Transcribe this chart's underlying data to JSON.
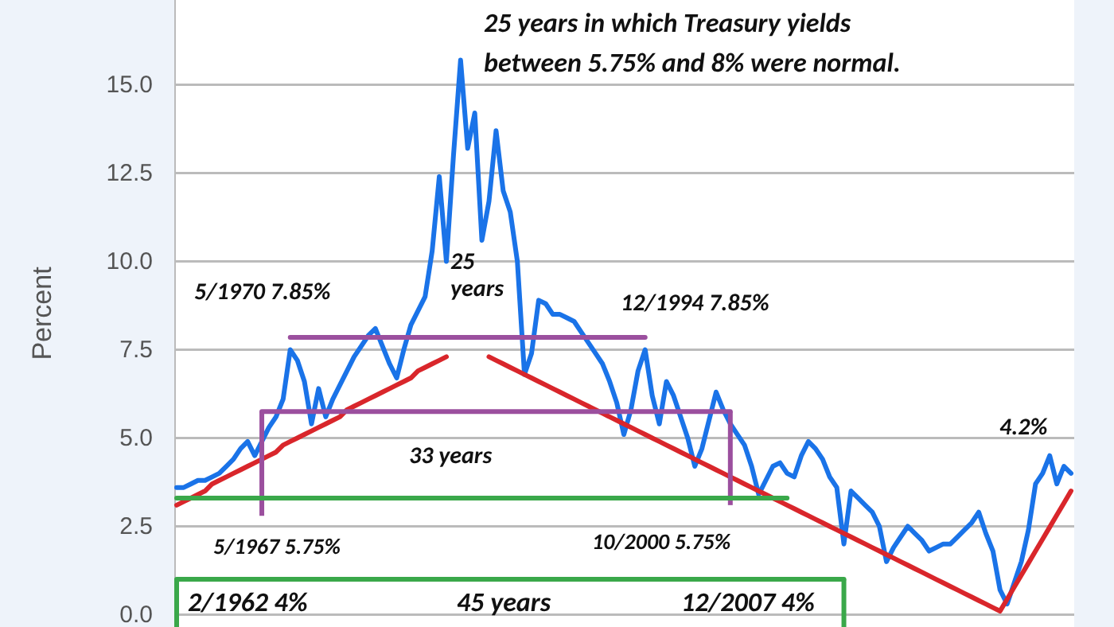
{
  "chart_data": {
    "type": "line",
    "title": "25 years in which Treasury yields\nbetween 5.75% and 8% were normal.",
    "ylabel": "Percent",
    "categories": [
      null,
      null,
      null,
      null,
      null,
      null,
      null,
      null,
      null,
      null,
      null,
      null,
      null,
      null,
      null,
      null,
      null,
      null,
      null,
      null,
      null,
      null,
      null,
      null,
      null,
      null,
      null,
      null,
      null,
      null,
      null,
      null,
      null,
      null,
      null,
      null,
      null,
      null,
      null,
      null,
      null,
      null,
      null,
      null,
      null,
      null,
      null,
      null,
      null,
      null,
      null,
      null,
      null,
      null,
      null,
      null,
      null,
      null,
      null,
      null,
      null,
      null,
      null,
      null,
      null,
      null,
      null,
      null,
      null,
      null,
      null,
      null,
      null,
      null,
      null,
      null,
      null,
      null,
      null,
      null,
      null,
      null,
      null,
      null,
      null,
      null,
      null,
      null,
      null,
      null,
      null,
      null,
      null,
      null,
      null,
      null,
      null,
      null,
      null,
      null,
      null,
      null,
      null,
      null,
      null,
      null,
      null,
      null,
      null,
      null,
      null,
      null,
      null,
      null,
      null,
      null,
      null,
      null,
      null,
      null,
      null,
      null,
      null,
      null,
      null,
      null,
      null
    ],
    "ylim": [
      -0.35,
      17.4
    ],
    "yticks": [
      {
        "value": 0,
        "label": "0.0"
      },
      2.5,
      {
        "value": 5,
        "label": "5.0"
      },
      7.5,
      {
        "value": 10,
        "label": "10.0"
      },
      12.5,
      {
        "value": 15,
        "label": "15.0"
      }
    ],
    "grid": "y",
    "line_style": "solid",
    "series": [
      {
        "type": "line",
        "color": "#1a73e8",
        "values": [
          3.6,
          3.6,
          3.7,
          3.8,
          3.8,
          3.9,
          4.0,
          4.2,
          4.4,
          4.7,
          4.9,
          4.5,
          4.9,
          5.3,
          5.6,
          6.1,
          7.5,
          7.2,
          6.6,
          5.4,
          6.4,
          5.6,
          6.1,
          6.5,
          6.9,
          7.3,
          7.6,
          7.9,
          8.1,
          7.6,
          7.1,
          6.7,
          7.5,
          8.2,
          8.6,
          9.0,
          10.3,
          12.4,
          10.0,
          13.0,
          15.7,
          13.2,
          14.2,
          10.6,
          11.7,
          13.7,
          12.0,
          11.4,
          10.0,
          6.8,
          7.4,
          8.9,
          8.8,
          8.5,
          8.5,
          8.4,
          8.3,
          8.0,
          7.7,
          7.4,
          7.1,
          6.6,
          6.0,
          5.1,
          5.8,
          6.9,
          7.5,
          6.2,
          5.4,
          6.6,
          6.2,
          5.6,
          5.0,
          4.2,
          4.7,
          5.5,
          6.3,
          5.8,
          5.4,
          5.1,
          4.8,
          4.2,
          3.4,
          3.8,
          4.2,
          4.3,
          4.0,
          3.9,
          4.5,
          4.9,
          4.7,
          4.4,
          3.9,
          3.6,
          2.0,
          3.5,
          3.3,
          3.1,
          2.9,
          2.5,
          1.5,
          1.9,
          2.2,
          2.5,
          2.3,
          2.1,
          1.8,
          1.9,
          2.0,
          2.0,
          2.2,
          2.4,
          2.6,
          2.9,
          2.3,
          1.8,
          0.7,
          0.3,
          0.9,
          1.5,
          2.4,
          3.7,
          4.0,
          4.5,
          3.7,
          4.2,
          4.0
        ]
      },
      {
        "type": "line",
        "color": "#d9262b",
        "values": [
          3.1,
          3.2,
          3.3,
          3.4,
          3.5,
          3.7,
          3.8,
          3.9,
          4.0,
          4.1,
          4.2,
          4.3,
          4.4,
          4.5,
          4.6,
          4.8,
          4.9,
          5.0,
          5.1,
          5.2,
          5.3,
          5.4,
          5.5,
          5.6,
          5.8,
          5.9,
          6.0,
          6.1,
          6.2,
          6.3,
          6.4,
          6.5,
          6.6,
          6.7,
          6.9,
          7.0,
          7.1,
          7.2,
          7.3,
          null,
          null,
          null,
          null,
          null,
          null,
          null,
          null,
          null,
          null,
          null,
          null,
          null,
          null,
          null,
          null,
          null,
          null,
          null,
          null,
          null,
          null,
          null,
          null,
          null,
          null,
          null,
          null,
          null,
          null,
          null,
          null,
          null,
          null,
          null,
          null,
          null,
          null,
          null,
          null,
          null,
          null,
          null,
          null,
          null,
          null,
          null,
          null,
          null,
          null,
          null,
          null,
          null,
          null,
          null,
          null,
          null,
          null,
          null,
          null,
          null,
          null,
          null,
          null,
          null,
          null,
          null,
          null,
          null,
          null,
          null,
          null,
          null,
          null,
          null,
          null,
          null,
          null,
          null,
          null,
          null,
          null,
          null,
          null,
          null,
          null,
          null,
          null
        ]
      },
      {
        "type": "line",
        "color": "#d9262b",
        "values": [
          null,
          null,
          null,
          null,
          null,
          null,
          null,
          null,
          null,
          null,
          null,
          null,
          null,
          null,
          null,
          null,
          null,
          null,
          null,
          null,
          null,
          null,
          null,
          null,
          null,
          null,
          null,
          null,
          null,
          null,
          null,
          null,
          null,
          null,
          null,
          null,
          null,
          null,
          null,
          null,
          null,
          null,
          null,
          null,
          7.3,
          7.2,
          7.1,
          7.0,
          6.9,
          6.8,
          6.7,
          6.6,
          6.5,
          6.4,
          6.3,
          6.2,
          6.1,
          6.0,
          5.9,
          5.8,
          5.7,
          5.6,
          5.5,
          5.4,
          5.3,
          5.2,
          5.1,
          5.0,
          4.9,
          4.8,
          4.7,
          4.6,
          4.5,
          4.4,
          4.3,
          4.2,
          4.1,
          4.0,
          3.9,
          3.8,
          3.7,
          3.6,
          3.5,
          3.4,
          3.3,
          3.2,
          3.1,
          3.0,
          2.9,
          2.8,
          2.7,
          2.6,
          2.5,
          2.4,
          2.3,
          2.2,
          2.1,
          2.0,
          1.9,
          1.8,
          1.7,
          1.6,
          1.5,
          1.4,
          1.3,
          1.2,
          1.1,
          1.0,
          0.9,
          0.8,
          0.7,
          0.6,
          0.5,
          0.4,
          0.3,
          0.2,
          0.1,
          0.44,
          0.78,
          1.12,
          1.46,
          1.8,
          2.14,
          2.48,
          2.82,
          3.16,
          3.5
        ]
      },
      {
        "type": "line",
        "color": "#9b4f9e",
        "values": [
          null,
          null,
          null,
          null,
          null,
          null,
          null,
          null,
          null,
          null,
          null,
          null,
          null,
          null,
          null,
          null,
          7.85,
          7.85,
          7.85,
          7.85,
          7.85,
          7.85,
          7.85,
          7.85,
          7.85,
          7.85,
          7.85,
          7.85,
          7.85,
          7.85,
          7.85,
          7.85,
          7.85,
          7.85,
          7.85,
          7.85,
          7.85,
          7.85,
          7.85,
          7.85,
          7.85,
          7.85,
          7.85,
          7.85,
          7.85,
          7.85,
          7.85,
          7.85,
          7.85,
          7.85,
          7.85,
          7.85,
          7.85,
          7.85,
          7.85,
          7.85,
          7.85,
          7.85,
          7.85,
          7.85,
          7.85,
          7.85,
          7.85,
          7.85,
          7.85,
          7.85,
          7.85,
          null,
          null,
          null,
          null,
          null,
          null,
          null,
          null,
          null,
          null,
          null,
          null,
          null,
          null,
          null,
          null,
          null,
          null,
          null,
          null,
          null,
          null,
          null,
          null,
          null,
          null,
          null,
          null,
          null,
          null,
          null,
          null,
          null,
          null,
          null,
          null,
          null,
          null,
          null,
          null,
          null,
          null,
          null,
          null,
          null,
          null,
          null,
          null,
          null,
          null,
          null,
          null,
          null,
          null,
          null,
          null,
          null,
          null,
          null,
          null
        ]
      },
      {
        "type": "line",
        "color": "#9b4f9e",
        "values": [
          null,
          null,
          null,
          null,
          null,
          null,
          null,
          null,
          null,
          null,
          null,
          null,
          5.75,
          5.75,
          5.75,
          5.75,
          5.75,
          5.75,
          5.75,
          5.75,
          5.75,
          5.75,
          5.75,
          5.75,
          5.75,
          5.75,
          5.75,
          5.75,
          5.75,
          5.75,
          5.75,
          5.75,
          5.75,
          5.75,
          5.75,
          5.75,
          5.75,
          5.75,
          5.75,
          5.75,
          5.75,
          5.75,
          5.75,
          5.75,
          5.75,
          5.75,
          5.75,
          5.75,
          5.75,
          5.75,
          5.75,
          5.75,
          5.75,
          5.75,
          5.75,
          5.75,
          5.75,
          5.75,
          5.75,
          5.75,
          5.75,
          5.75,
          5.75,
          5.75,
          5.75,
          5.75,
          5.75,
          5.75,
          5.75,
          5.75,
          5.75,
          5.75,
          5.75,
          5.75,
          5.75,
          5.75,
          5.75,
          5.75,
          5.75,
          null,
          null,
          null,
          null,
          null,
          null,
          null,
          null,
          null,
          null,
          null,
          null,
          null,
          null,
          null,
          null,
          null,
          null,
          null,
          null,
          null,
          null,
          null,
          null,
          null,
          null,
          null,
          null,
          null,
          null,
          null,
          null,
          null,
          null,
          null,
          null,
          null,
          null,
          null,
          null,
          null,
          null,
          null,
          null,
          null,
          null,
          null,
          null
        ],
        "errors": [
          null,
          null,
          null,
          null,
          null,
          null,
          null,
          null,
          null,
          null,
          null,
          null,
          [
            2.8,
            5.75
          ],
          null,
          null,
          null,
          null,
          null,
          null,
          null,
          null,
          null,
          null,
          null,
          null,
          null,
          null,
          null,
          null,
          null,
          null,
          null,
          null,
          null,
          null,
          null,
          null,
          null,
          null,
          null,
          null,
          null,
          null,
          null,
          null,
          null,
          null,
          null,
          null,
          null,
          null,
          null,
          null,
          null,
          null,
          null,
          null,
          null,
          null,
          null,
          null,
          null,
          null,
          null,
          null,
          null,
          null,
          null,
          null,
          null,
          null,
          null,
          null,
          null,
          null,
          null,
          null,
          null,
          [
            3.1,
            5.75
          ],
          null,
          null,
          null,
          null,
          null,
          null,
          null,
          null,
          null,
          null,
          null,
          null,
          null,
          null,
          null,
          null,
          null,
          null,
          null,
          null,
          null,
          null,
          null,
          null,
          null,
          null,
          null,
          null,
          null,
          null,
          null,
          null,
          null,
          null,
          null,
          null,
          null,
          null,
          null,
          null,
          null,
          null,
          null,
          null,
          null,
          null,
          null,
          null
        ]
      },
      {
        "type": "line",
        "color": "#3aa84a",
        "values": [
          3.3,
          3.3,
          3.3,
          3.3,
          3.3,
          3.3,
          3.3,
          3.3,
          3.3,
          3.3,
          3.3,
          3.3,
          3.3,
          3.3,
          3.3,
          3.3,
          3.3,
          3.3,
          3.3,
          3.3,
          3.3,
          3.3,
          3.3,
          3.3,
          3.3,
          3.3,
          3.3,
          3.3,
          3.3,
          3.3,
          3.3,
          3.3,
          3.3,
          3.3,
          3.3,
          3.3,
          3.3,
          3.3,
          3.3,
          3.3,
          3.3,
          3.3,
          3.3,
          3.3,
          3.3,
          3.3,
          3.3,
          3.3,
          3.3,
          3.3,
          3.3,
          3.3,
          3.3,
          3.3,
          3.3,
          3.3,
          3.3,
          3.3,
          3.3,
          3.3,
          3.3,
          3.3,
          3.3,
          3.3,
          3.3,
          3.3,
          3.3,
          3.3,
          3.3,
          3.3,
          3.3,
          3.3,
          3.3,
          3.3,
          3.3,
          3.3,
          3.3,
          3.3,
          3.3,
          3.3,
          3.3,
          3.3,
          3.3,
          3.3,
          3.3,
          3.3,
          3.3,
          null,
          null,
          null,
          null,
          null,
          null,
          null,
          null,
          null,
          null,
          null,
          null,
          null,
          null,
          null,
          null,
          null,
          null,
          null,
          null,
          null,
          null,
          null,
          null,
          null,
          null,
          null,
          null,
          null,
          null,
          null,
          null,
          null,
          null,
          null,
          null,
          null,
          null,
          null,
          null
        ]
      },
      {
        "type": "line",
        "color": "#3aa84a",
        "values": [
          1.0,
          1.0,
          1.0,
          1.0,
          1.0,
          1.0,
          1.0,
          1.0,
          1.0,
          1.0,
          1.0,
          1.0,
          1.0,
          1.0,
          1.0,
          1.0,
          1.0,
          1.0,
          1.0,
          1.0,
          1.0,
          1.0,
          1.0,
          1.0,
          1.0,
          1.0,
          1.0,
          1.0,
          1.0,
          1.0,
          1.0,
          1.0,
          1.0,
          1.0,
          1.0,
          1.0,
          1.0,
          1.0,
          1.0,
          1.0,
          1.0,
          1.0,
          1.0,
          1.0,
          1.0,
          1.0,
          1.0,
          1.0,
          1.0,
          1.0,
          1.0,
          1.0,
          1.0,
          1.0,
          1.0,
          1.0,
          1.0,
          1.0,
          1.0,
          1.0,
          1.0,
          1.0,
          1.0,
          1.0,
          1.0,
          1.0,
          1.0,
          1.0,
          1.0,
          1.0,
          1.0,
          1.0,
          1.0,
          1.0,
          1.0,
          1.0,
          1.0,
          1.0,
          1.0,
          1.0,
          1.0,
          1.0,
          1.0,
          1.0,
          1.0,
          1.0,
          1.0,
          1.0,
          1.0,
          1.0,
          1.0,
          1.0,
          1.0,
          1.0,
          1.0,
          null,
          null,
          null,
          null,
          null,
          null,
          null,
          null,
          null,
          null,
          null,
          null,
          null,
          null,
          null,
          null,
          null,
          null,
          null,
          null,
          null,
          null,
          null,
          null,
          null,
          null,
          null,
          null,
          null,
          null,
          null,
          null
        ],
        "errors": [
          [
            -0.35,
            1.0
          ],
          null,
          null,
          null,
          null,
          null,
          null,
          null,
          null,
          null,
          null,
          null,
          null,
          null,
          null,
          null,
          null,
          null,
          null,
          null,
          null,
          null,
          null,
          null,
          null,
          null,
          null,
          null,
          null,
          null,
          null,
          null,
          null,
          null,
          null,
          null,
          null,
          null,
          null,
          null,
          null,
          null,
          null,
          null,
          null,
          null,
          null,
          null,
          null,
          null,
          null,
          null,
          null,
          null,
          null,
          null,
          null,
          null,
          null,
          null,
          null,
          null,
          null,
          null,
          null,
          null,
          null,
          null,
          null,
          null,
          null,
          null,
          null,
          null,
          null,
          null,
          null,
          null,
          null,
          null,
          null,
          null,
          null,
          null,
          null,
          null,
          null,
          null,
          null,
          null,
          null,
          null,
          null,
          null,
          [
            -0.35,
            1.0
          ],
          null,
          null,
          null,
          null,
          null,
          null,
          null,
          null,
          null,
          null,
          null,
          null,
          null,
          null,
          null,
          null,
          null,
          null,
          null,
          null,
          null,
          null,
          null,
          null,
          null,
          null,
          null,
          null,
          null,
          null,
          null,
          null
        ]
      }
    ],
    "annotations": [
      "5/1970 7.85%",
      "25\nyears",
      "12/1994  7.85%",
      "33 years",
      "5/1967 5.75%",
      "10/2000  5.75%",
      "4.2%",
      "2/1962  4%",
      "45 years",
      "12/2007  4%"
    ]
  }
}
